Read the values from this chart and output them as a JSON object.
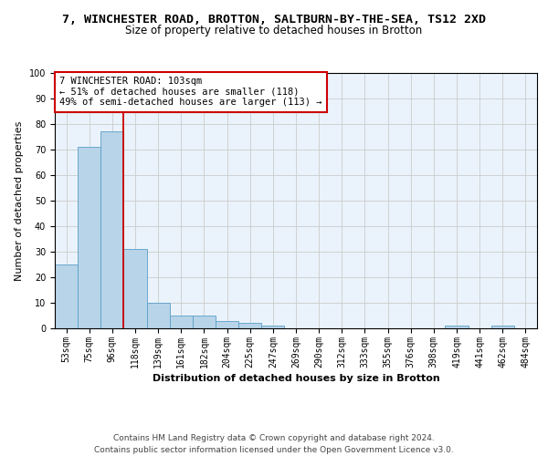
{
  "title_line1": "7, WINCHESTER ROAD, BROTTON, SALTBURN-BY-THE-SEA, TS12 2XD",
  "title_line2": "Size of property relative to detached houses in Brotton",
  "xlabel": "Distribution of detached houses by size in Brotton",
  "ylabel": "Number of detached properties",
  "categories": [
    "53sqm",
    "75sqm",
    "96sqm",
    "118sqm",
    "139sqm",
    "161sqm",
    "182sqm",
    "204sqm",
    "225sqm",
    "247sqm",
    "269sqm",
    "290sqm",
    "312sqm",
    "333sqm",
    "355sqm",
    "376sqm",
    "398sqm",
    "419sqm",
    "441sqm",
    "462sqm",
    "484sqm"
  ],
  "values": [
    25,
    71,
    77,
    31,
    10,
    5,
    5,
    3,
    2,
    1,
    0,
    0,
    0,
    0,
    0,
    0,
    0,
    1,
    0,
    1,
    0
  ],
  "bar_color": "#b8d4e8",
  "bar_edge_color": "#5a9ec9",
  "red_line_x": 2.5,
  "annotation_text": "7 WINCHESTER ROAD: 103sqm\n← 51% of detached houses are smaller (118)\n49% of semi-detached houses are larger (113) →",
  "annotation_box_color": "#ffffff",
  "annotation_box_edge": "#cc0000",
  "red_line_color": "#cc0000",
  "ylim": [
    0,
    100
  ],
  "yticks": [
    0,
    10,
    20,
    30,
    40,
    50,
    60,
    70,
    80,
    90,
    100
  ],
  "grid_color": "#cccccc",
  "background_color": "#eaf3fb",
  "footer_line1": "Contains HM Land Registry data © Crown copyright and database right 2024.",
  "footer_line2": "Contains public sector information licensed under the Open Government Licence v3.0.",
  "title_fontsize": 9.5,
  "subtitle_fontsize": 8.5,
  "axis_label_fontsize": 8,
  "tick_fontsize": 7,
  "annotation_fontsize": 7.5,
  "footer_fontsize": 6.5
}
